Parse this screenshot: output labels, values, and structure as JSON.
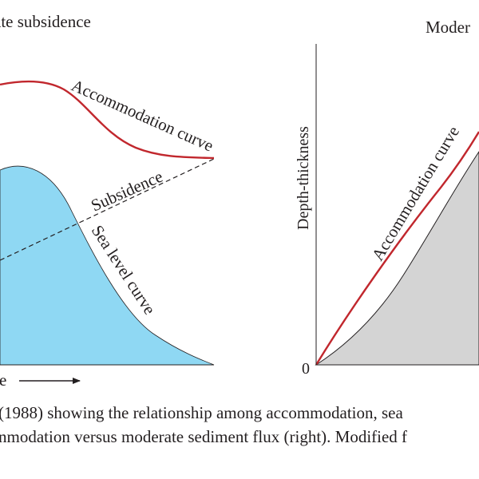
{
  "left_panel": {
    "title": "ate subsidence",
    "accommodation_label": "Accommodation curve",
    "subsidence_label": "Subsidence",
    "sea_level_label": "Sea level curve",
    "x_axis_fragment": "e",
    "sea_level_fill": "#8fd8f3",
    "accommodation_color": "#c1272d"
  },
  "right_panel": {
    "title": "Moder",
    "ylabel": "Depth-thickness",
    "origin_label": "0",
    "accommodation_label": "Accommodation curve",
    "sediment_fill": "#d4d4d4",
    "accommodation_color": "#c1272d"
  },
  "caption": {
    "line1": "(1988) showing the relationship among accommodation, sea",
    "line2": "nmodation versus moderate sediment flux (right). Modified f"
  }
}
